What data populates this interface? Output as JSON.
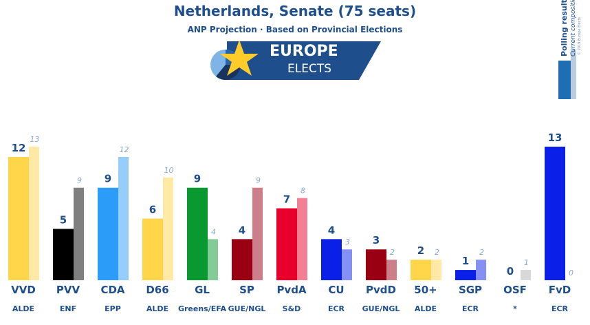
{
  "header": {
    "title": "Netherlands, Senate (75 seats)",
    "subtitle": "ANP Projection · Based on Provincial Elections"
  },
  "brand": {
    "line1": "EUROPE",
    "line2": "ELECTS",
    "color": "#1f4e8c"
  },
  "legend": {
    "polling": "Polling result",
    "current": "Current composition",
    "copyright": "© 2019 Europe Elects",
    "polling_color": "#1f6db3",
    "current_color": "#b9cce0"
  },
  "chart_data": {
    "type": "bar",
    "title": "Netherlands, Senate (75 seats)",
    "subtitle": "ANP Projection · Based on Provincial Elections",
    "categories": [
      "VVD",
      "PVV",
      "CDA",
      "D66",
      "GL",
      "SP",
      "PvdA",
      "CU",
      "PvdD",
      "50+",
      "SGP",
      "OSF",
      "FvD"
    ],
    "groups": [
      "ALDE",
      "ENF",
      "EPP",
      "ALDE",
      "Greens/EFA",
      "GUE/NGL",
      "S&D",
      "ECR",
      "GUE/NGL",
      "ALDE",
      "ECR",
      "*",
      "ECR"
    ],
    "series": [
      {
        "name": "Polling result",
        "values": [
          12,
          5,
          9,
          6,
          9,
          4,
          7,
          4,
          3,
          2,
          1,
          0,
          13
        ]
      },
      {
        "name": "Current composition",
        "values": [
          13,
          9,
          12,
          10,
          4,
          9,
          8,
          3,
          2,
          2,
          2,
          1,
          0
        ]
      }
    ],
    "colors": [
      "#ffd54a",
      "#000000",
      "#2b9cf7",
      "#ffd54a",
      "#0a9930",
      "#990012",
      "#e8002a",
      "#0a1fe8",
      "#990012",
      "#ffd54a",
      "#0a1fe8",
      "#b0b0b0",
      "#0a1fe8"
    ],
    "current_colors": [
      "#ffe9a5",
      "#7f7f7f",
      "#95cdfb",
      "#ffe9a5",
      "#84cc97",
      "#cc7f88",
      "#f37f94",
      "#8490f3",
      "#cc7f88",
      "#ffe9a5",
      "#8490f3",
      "#d8d8d8",
      "#8490f3"
    ],
    "ylim": [
      0,
      13
    ],
    "grid": false
  }
}
